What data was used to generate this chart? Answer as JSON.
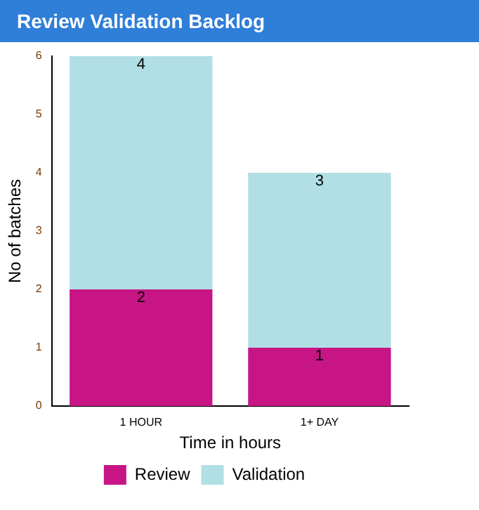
{
  "chart_data": {
    "type": "bar",
    "title": "Review Validation Backlog",
    "xlabel": "Time in hours",
    "ylabel": "No of batches",
    "categories": [
      "1 HOUR",
      "1+ DAY"
    ],
    "series": [
      {
        "name": "Review",
        "color": "#c71585",
        "values": [
          2,
          1
        ]
      },
      {
        "name": "Validation",
        "color": "#b0dfe5",
        "values": [
          4,
          3
        ]
      }
    ],
    "stacked": true,
    "ylim": [
      0,
      6
    ],
    "yticks": [
      0,
      1,
      2,
      3,
      4,
      5,
      6
    ],
    "grid": false,
    "legend": "bottom",
    "data_labels": true
  }
}
